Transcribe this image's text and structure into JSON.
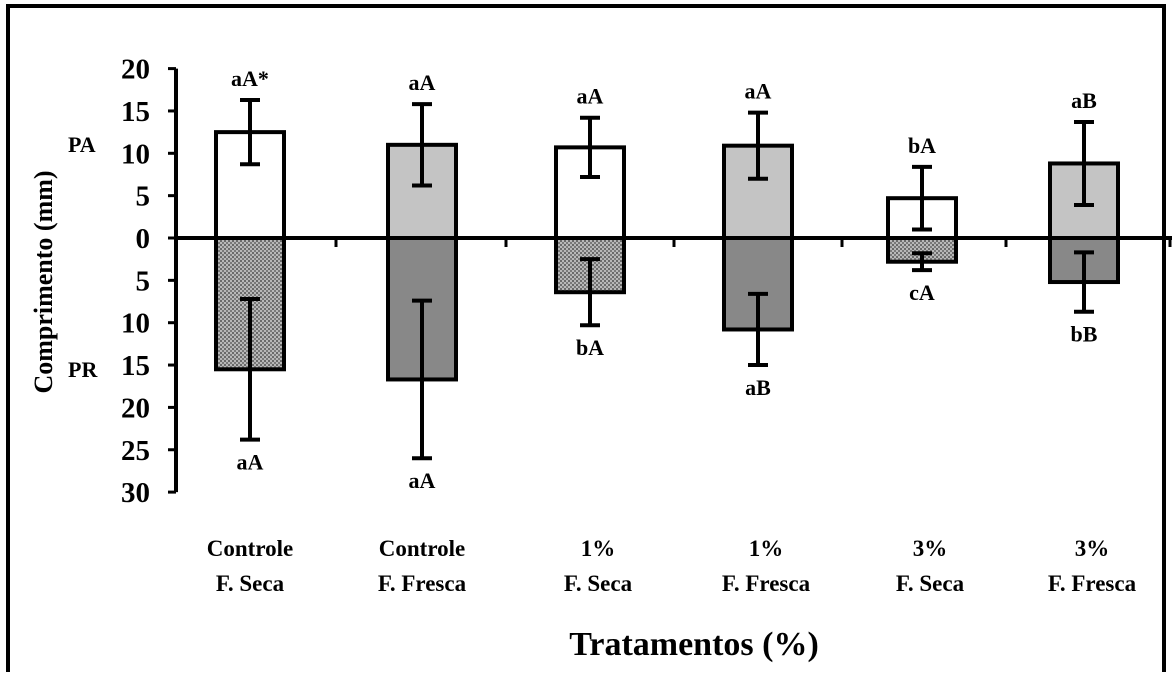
{
  "chart_data": {
    "type": "bar",
    "xlabel": "Tratamentos (%)",
    "ylabel": "Comprimento (mm)",
    "y_section_labels": {
      "positive": "PA",
      "negative": "PR"
    },
    "yticks_top": [
      "20",
      "15",
      "10",
      "5",
      "0"
    ],
    "yticks_bottom": [
      "5",
      "10",
      "15",
      "20",
      "25",
      "30"
    ],
    "ylim": [
      -30,
      20
    ],
    "categories": [
      [
        "Controle",
        "F. Seca"
      ],
      [
        "Controle",
        "F. Fresca"
      ],
      [
        "1%",
        "F. Seca"
      ],
      [
        "1%",
        "F. Fresca"
      ],
      [
        "3%",
        "F. Seca"
      ],
      [
        "3%",
        "F. Fresca"
      ]
    ],
    "series": [
      {
        "part": "PA",
        "values": [
          12.5,
          11,
          10.7,
          10.9,
          4.7,
          8.8
        ],
        "errors": [
          3.8,
          4.8,
          3.5,
          3.9,
          3.7,
          4.9
        ],
        "labels": [
          "aA*",
          "aA",
          "aA",
          "aA",
          "bA",
          "aB"
        ]
      },
      {
        "part": "PR",
        "values": [
          -15.5,
          -16.7,
          -6.4,
          -10.8,
          -2.8,
          -5.2
        ],
        "errors": [
          8.3,
          9.3,
          3.9,
          4.2,
          1.0,
          3.5
        ],
        "labels": [
          "aA",
          "aA",
          "bA",
          "aB",
          "cA",
          "bB"
        ]
      }
    ],
    "colors": {
      "pa_seca": "#ffffff",
      "pa_fresca": "#c4c4c4",
      "pr_seca": "#a4a4a4",
      "pr_fresca": "#888888",
      "axis": "#000000"
    }
  }
}
